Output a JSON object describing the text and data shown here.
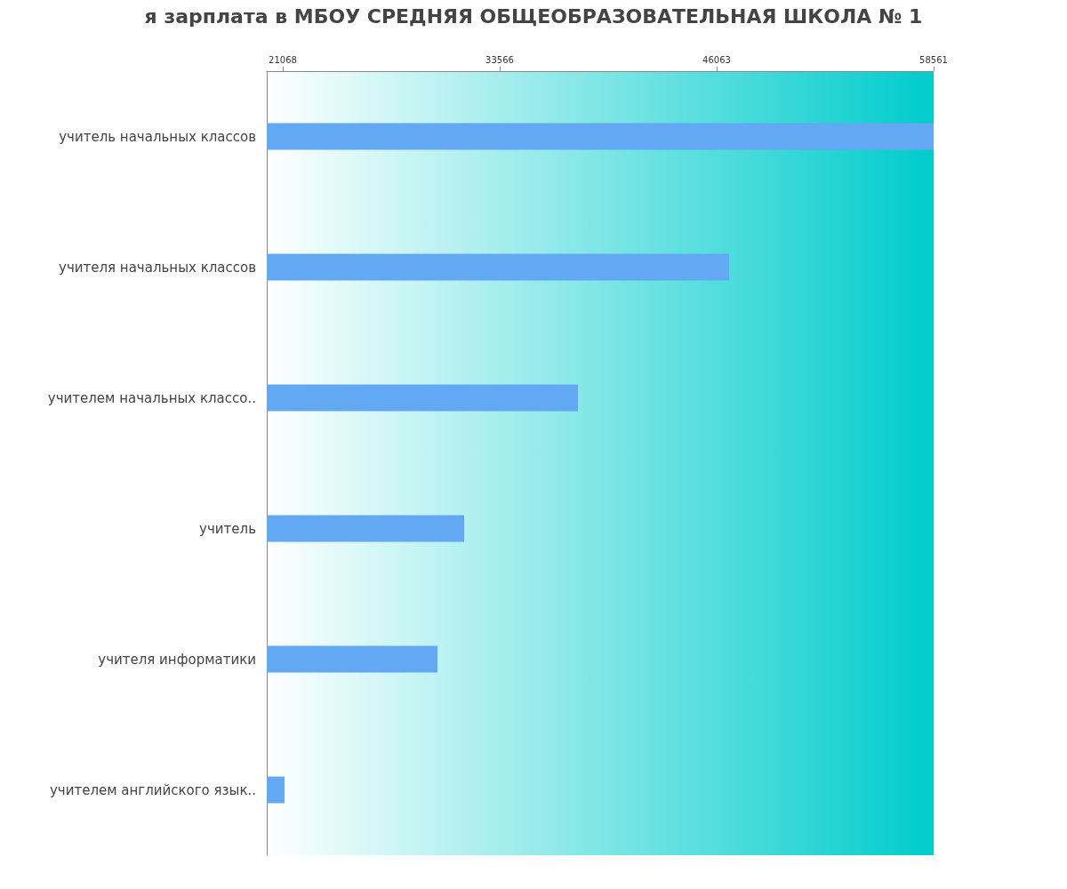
{
  "chart_data": {
    "type": "bar",
    "orientation": "horizontal",
    "title": "я зарплата в МБОУ СРЕДНЯЯ ОБЩЕОБРАЗОВАТЕЛЬНАЯ ШКОЛА № 1",
    "categories": [
      "учитель начальных классов",
      "учителя начальных классов",
      "учителем начальных классо..",
      "учитель",
      "учителя информатики",
      "учителем английского язык.."
    ],
    "values": [
      58561,
      46780,
      38070,
      31520,
      29980,
      21170
    ],
    "color": "#63a8f2",
    "xlim": [
      20146,
      58561
    ],
    "xticks": [
      21068,
      33566,
      46063,
      58561
    ],
    "grid": false
  }
}
